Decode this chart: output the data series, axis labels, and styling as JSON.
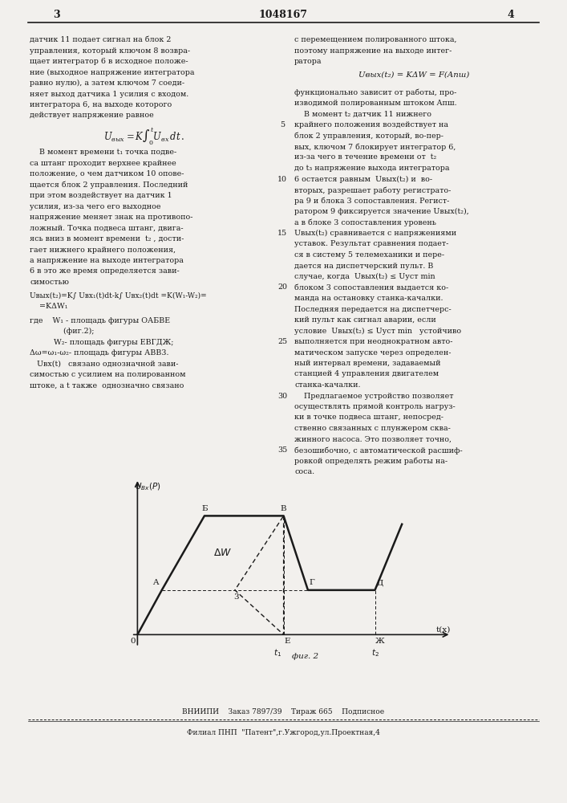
{
  "page_width": 7.07,
  "page_height": 10.0,
  "bg_color": "#f2f0ed",
  "header_text": "1048167",
  "page_left": "3",
  "page_right": "4",
  "footer_line1": "ВНИИПИ    Заказ 7897/39    Тираж 665    Подписное",
  "footer_line2": "Филиал ПНП  \"Патент\",г.Ужгород,ул.Проектная,4",
  "left_col_lines": [
    "датчик 11 подает сигнал на блок 2",
    "управления, который ключом 8 возвра-",
    "щает интегратор 6 в исходное положе-",
    "ние (выходное напряжение интегратора",
    "равно нулю), а затем ключом 7 соеди-",
    "няет выход датчика 1 усилия с входом.",
    "интегратора 6, на выходе которого",
    "действует напряжение равное"
  ],
  "formula1": "Uвых = K∫ Uвх dt .",
  "formula1_sub": "0",
  "formula1_sup": "t",
  "left_col_lines2": [
    "    В момент времени t₁ точка подве-",
    "са штанг проходит верхнее крайнее",
    "положение, о чем датчиком 10 опове-",
    "щается блок 2 управления. Последний",
    "при этом воздействует на датчик 1",
    "усилия, из-за чего его выходное",
    "напряжение меняет знак на противопо-",
    "ложный. Точка подвеса штанг, двига-",
    "ясь вниз в момент времени  t₂ , дости-",
    "гает нижнего крайнего положения,",
    "а напряжение на выходе интегратора",
    "6 в это же время определяется зави-",
    "симостью"
  ],
  "formula2_line1": "Uвых(t₂)=K∫ Uвх₁(t)dt-k∫ Uвх₂(t)dt =K(W₁-W₂)=",
  "formula2_line2": "    =KΔW₁",
  "left_col_lines3": [
    "где    W₁ - площадь фигуры ОАБВЕ",
    "              (фиг.2);",
    "          W₂- площадь фигуры ЕВГДЖ;",
    "Δω=ω₁-ω₂- площадь фигуры АВВ3.",
    "   Uвх(t)   связано однозначной зави-",
    "симостью с усилием на полированном",
    "штоке, а t также  однозначно связано"
  ],
  "right_col_lines": [
    "с перемещением полированного штока,",
    "поэтому напряжение на выходе интег-",
    "ратора"
  ],
  "formula_right": "Uвых(t₂) = KΔW = F(Aпш)",
  "right_col_lines2": [
    "функционально зависит от работы, про-",
    "изводимой полированным штоком Aпш.",
    "    В момент t₂ датчик 11 нижнего",
    "крайнего положения воздействует на",
    "блок 2 управления, который, во-пер-",
    "вых, ключом 7 блокирует интегратор 6,",
    "из-за чего в течение времени от  t₂",
    "до t₃ напряжение выхода интегратора",
    "6 остается равным  Uвых(t₂) и  во-",
    "вторых, разрешает работу регистрато-",
    "ра 9 и блока 3 сопоставления. Регист-",
    "ратором 9 фиксируется значение Uвых(t₂),",
    "а в блоке 3 сопоставления уровень",
    "Uвых(t₂) сравнивается с напряжениями",
    "уставок. Результат сравнения подает-",
    "ся в систему 5 телемеханики и пере-",
    "дается на диспетчерский пульт. В",
    "случае, когда  Uвых(t₂) ≤ Uуст min",
    "блоком 3 сопоставления выдается ко-",
    "манда на остановку станка-качалки.",
    "Последняя передается на диспетчерс-",
    "кий пульт как сигнал аварии, если",
    "условие  Uвых(t₂) ≤ Uуст min   устойчиво",
    "выполняется при неоднократном авто-",
    "матическом запуске через определен-",
    "ный интервал времени, задаваемый",
    "станцией 4 управления двигателем",
    "станка-качалки.",
    "    Предлагаемое устройство позволяет",
    "осуществлять прямой контроль нагруз-",
    "ки в точке подвеса штанг, непосред-",
    "ственно связанных с плунжером сква-",
    "жинного насоса. Это позволяет точно,",
    "безошибочно, с автоматической расшиф-",
    "ровкой определять режим работы на-",
    "соса."
  ],
  "line_numbers_right": [
    5,
    10,
    15,
    20,
    25,
    30,
    35
  ],
  "line_color": "#1a1a1a",
  "text_color": "#1a1a1a"
}
